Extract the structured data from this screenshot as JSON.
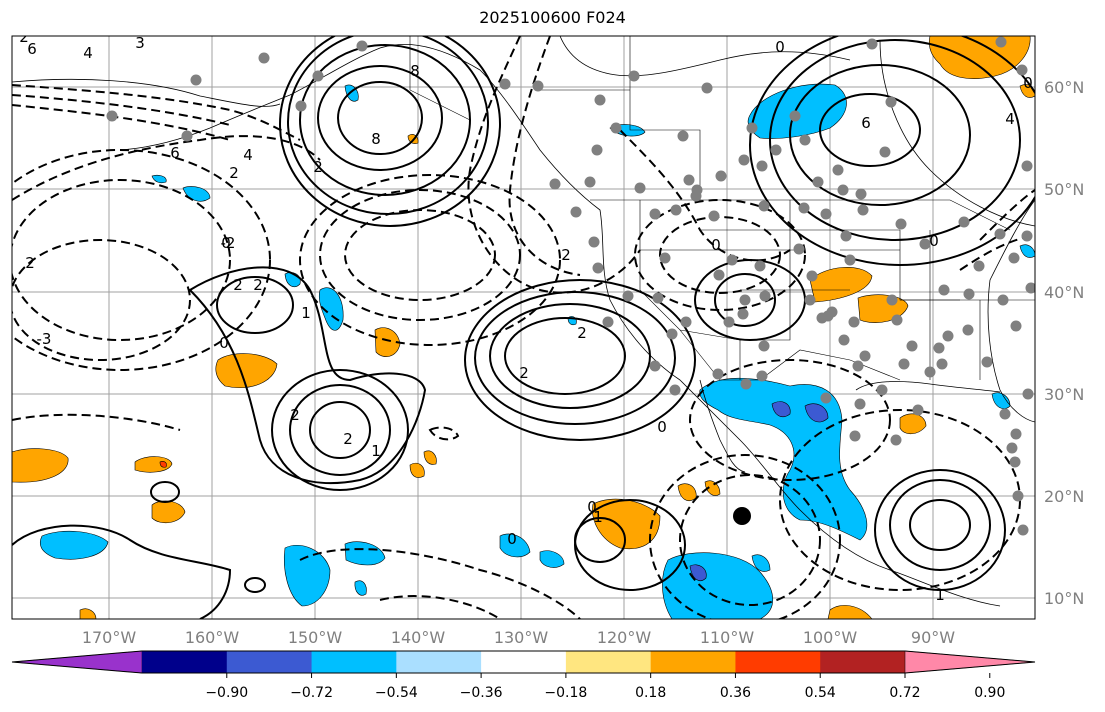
{
  "title": "2025100600 F024",
  "map": {
    "lon_labels": [
      "170°W",
      "160°W",
      "150°W",
      "140°W",
      "130°W",
      "120°W",
      "110°W",
      "100°W",
      "90°W"
    ],
    "lat_labels": [
      "60°N",
      "50°N",
      "40°N",
      "30°N",
      "20°N",
      "10°N"
    ],
    "contour_labels": [
      "6",
      "4",
      "3",
      "2",
      "8",
      "8",
      "6",
      "4",
      "2",
      "0",
      "0",
      "6",
      "4",
      "2",
      "0",
      "2",
      "2",
      "2",
      "1",
      "0",
      "2",
      "2",
      "2",
      "1",
      "2",
      "0",
      "-2",
      "-3",
      "0",
      "1",
      "0",
      "2",
      "0",
      "1",
      "0"
    ],
    "colors": {
      "gridline": "#a0a0a0",
      "land_border": "#000000",
      "station_marker": "#808080"
    }
  },
  "colorbar": {
    "colors": [
      "#9932cc",
      "#00008b",
      "#3c5ad2",
      "#00bfff",
      "#aadfff",
      "#ffffff",
      "#ffe680",
      "#ffa500",
      "#ff3c00",
      "#b22222",
      "#ff88a8"
    ],
    "tick_labels": [
      "−0.90",
      "−0.72",
      "−0.54",
      "−0.36",
      "−0.18",
      "0.18",
      "0.36",
      "0.54",
      "0.72",
      "0.90"
    ]
  }
}
